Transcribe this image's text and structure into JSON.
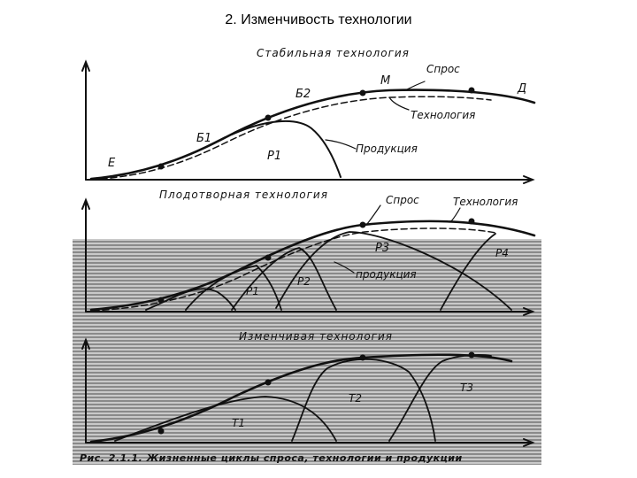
{
  "slide": {
    "title": "2. Изменчивость технологии"
  },
  "panels": {
    "stable": {
      "title": "Стабильная технология",
      "labels": {
        "demand": "Спрос",
        "technology": "Технология",
        "product": "Продукция",
        "E": "E",
        "B1": "Б1",
        "B2": "Б2",
        "M": "M",
        "D": "Д",
        "P1": "P1"
      }
    },
    "fruitful": {
      "title": "Плодотворная технология",
      "labels": {
        "demand": "Спрос",
        "technology": "Технология",
        "product": "продукция",
        "P1": "P1",
        "P2": "P2",
        "P3": "P3",
        "P4": "P4"
      }
    },
    "unstable": {
      "title": "Изменчивая технология",
      "labels": {
        "T1": "T1",
        "T2": "T2",
        "T3": "T3"
      }
    }
  },
  "caption": "Рис. 2.1.1. Жизненные циклы спроса, технологии и продукции",
  "colors": {
    "ink": "#111111",
    "stripe": "#8a8a8a",
    "background": "#ffffff"
  }
}
